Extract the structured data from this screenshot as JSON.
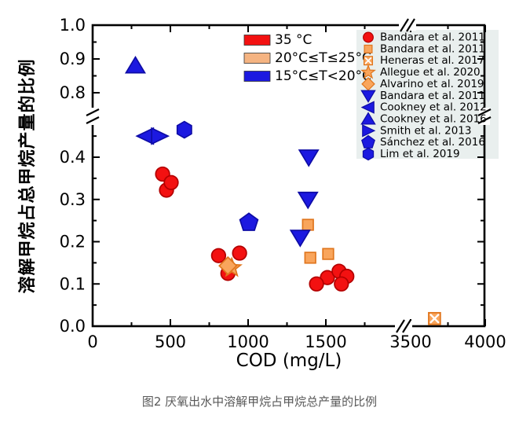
{
  "caption": "图2 厌氧出水中溶解甲烷占甲烷总产量的比例",
  "chart_data": {
    "type": "scatter",
    "xlabel": "COD (mg/L)",
    "ylabel": "溶解甲烷占总甲烷产量的比例",
    "grid": false,
    "x_axis": {
      "ticks_major": [
        0,
        500,
        1000,
        1500,
        3500,
        4000
      ],
      "tick_labels": [
        "0",
        "500",
        "1000",
        "1500",
        "3500",
        "4000"
      ],
      "ticks_minor": [
        250,
        750,
        1250,
        1750,
        3750
      ],
      "break_between": [
        2000,
        3500
      ],
      "range": [
        [
          0,
          2000
        ],
        [
          3500,
          4000
        ]
      ]
    },
    "y_axis": {
      "ticks_major": [
        0,
        0.1,
        0.2,
        0.3,
        0.4,
        0.8,
        0.9,
        1.0
      ],
      "tick_labels": [
        "0.0",
        "0.1",
        "0.2",
        "0.3",
        "0.4",
        "0.8",
        "0.9",
        "1.0"
      ],
      "ticks_minor": [
        0.05,
        0.15,
        0.25,
        0.35,
        0.45,
        0.85,
        0.95
      ],
      "break_between": [
        0.47,
        0.76
      ],
      "range": [
        [
          0,
          0.47
        ],
        [
          0.76,
          1.0
        ]
      ]
    },
    "colors": {
      "red": {
        "fill": "#f31111",
        "stroke": "#b30000"
      },
      "orange": {
        "fill": "#f9a55c",
        "stroke": "#e0761e"
      },
      "blue": {
        "fill": "#1c19e0",
        "stroke": "#0e0ca6"
      },
      "legend_bg": "#e9efee"
    },
    "temp_legend": [
      {
        "label": "35 °C",
        "color": "#f31111"
      },
      {
        "label": "20°C≤T≤25°C",
        "color": "#f5b482"
      },
      {
        "label": "15°C≤T<20°C",
        "color": "#1c19e0"
      }
    ],
    "series": [
      {
        "name": "Bandara et al. 2011",
        "marker": "circle",
        "color": "red",
        "points": [
          [
            450,
            0.36
          ],
          [
            475,
            0.322
          ],
          [
            505,
            0.34
          ],
          [
            810,
            0.167
          ],
          [
            945,
            0.173
          ],
          [
            870,
            0.125
          ],
          [
            1510,
            0.115
          ],
          [
            1440,
            0.1
          ],
          [
            1585,
            0.13
          ],
          [
            1635,
            0.118
          ],
          [
            1600,
            0.1
          ]
        ]
      },
      {
        "name": "Bandara et al. 2011",
        "marker": "square",
        "color": "orange",
        "points": [
          [
            1385,
            0.24
          ],
          [
            1400,
            0.162
          ],
          [
            1515,
            0.171
          ]
        ]
      },
      {
        "name": "Heneras et al. 2017",
        "marker": "square-x",
        "color": "orange",
        "points": [
          [
            3660,
            0.018
          ]
        ]
      },
      {
        "name": "Allegue et al. 2020",
        "marker": "star",
        "color": "orange",
        "points": [
          [
            895,
            0.138
          ]
        ]
      },
      {
        "name": "Alvarino et al. 2019",
        "marker": "diamond",
        "color": "orange",
        "points": [
          [
            870,
            0.143
          ]
        ]
      },
      {
        "name": "Bandara et al. 2011",
        "marker": "triangle-down",
        "color": "blue",
        "points": [
          [
            1390,
            0.4
          ],
          [
            1385,
            0.3
          ],
          [
            1335,
            0.21
          ]
        ]
      },
      {
        "name": "Cookney et al. 2012",
        "marker": "triangle-left",
        "color": "blue",
        "points": [
          [
            340,
            0.45
          ]
        ]
      },
      {
        "name": "Cookney et al. 2016",
        "marker": "triangle-up",
        "color": "blue",
        "points": [
          [
            275,
            0.88
          ]
        ]
      },
      {
        "name": "Smith et al. 2013",
        "marker": "triangle-right",
        "color": "blue",
        "points": [
          [
            430,
            0.45
          ]
        ]
      },
      {
        "name": "Sánchez et al. 2016",
        "marker": "pentagon",
        "color": "blue",
        "points": [
          [
            1005,
            0.245
          ]
        ]
      },
      {
        "name": "Lim et al. 2019",
        "marker": "hexagon",
        "color": "blue",
        "points": [
          [
            590,
            0.465
          ]
        ]
      }
    ]
  }
}
